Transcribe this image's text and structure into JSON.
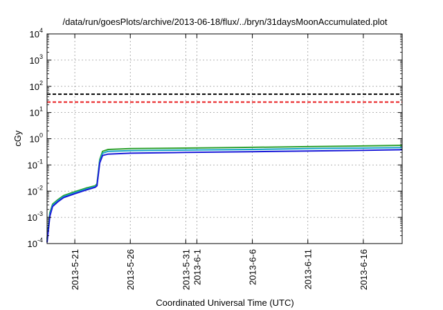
{
  "chart_data": {
    "type": "line",
    "title": "/data/run/goesPlots/archive/2013-06-18/flux/../bryn/31daysMoonAccumulated.plot",
    "xlabel": "Coordinated Universal Time (UTC)",
    "ylabel": "cGy",
    "yscale": "log",
    "ylim": [
      0.0001,
      10000
    ],
    "xlim": [
      "2013-05-18T12:00",
      "2013-06-19T12:00"
    ],
    "grid": true,
    "y_ticks": [
      {
        "value": 0.0001,
        "base": "10",
        "exp": "-4"
      },
      {
        "value": 0.001,
        "base": "10",
        "exp": "-3"
      },
      {
        "value": 0.01,
        "base": "10",
        "exp": "-2"
      },
      {
        "value": 0.1,
        "base": "10",
        "exp": "-1"
      },
      {
        "value": 1,
        "base": "10",
        "exp": "0"
      },
      {
        "value": 10,
        "base": "10",
        "exp": "1"
      },
      {
        "value": 100,
        "base": "10",
        "exp": "2"
      },
      {
        "value": 1000,
        "base": "10",
        "exp": "3"
      },
      {
        "value": 10000,
        "base": "10",
        "exp": "4"
      }
    ],
    "x_ticks": [
      {
        "date": "2013-05-21",
        "label": "2013-5-21"
      },
      {
        "date": "2013-05-26",
        "label": "2013-5-26"
      },
      {
        "date": "2013-05-31",
        "label": "2013-5-31"
      },
      {
        "date": "2013-06-01",
        "label": "2013-6-1"
      },
      {
        "date": "2013-06-06",
        "label": "2013-6-6"
      },
      {
        "date": "2013-06-11",
        "label": "2013-6-11"
      },
      {
        "date": "2013-06-16",
        "label": "2013-6-16"
      }
    ],
    "thresholds": [
      {
        "value": 50,
        "color": "#000000",
        "style": "dashed"
      },
      {
        "value": 25,
        "color": "#e8191b",
        "style": "dashed"
      }
    ],
    "series": [
      {
        "color": "#2ca02c",
        "x": [
          "2013-05-18T12:00",
          "2013-05-18T18:00",
          "2013-05-19T00:00",
          "2013-05-19T12:00",
          "2013-05-20T00:00",
          "2013-05-21T00:00",
          "2013-05-22T00:00",
          "2013-05-22T20:00",
          "2013-05-23T00:00",
          "2013-05-23T06:00",
          "2013-05-23T12:00",
          "2013-05-24T00:00",
          "2013-05-26T00:00",
          "2013-05-31T00:00",
          "2013-06-06T00:00",
          "2013-06-11T00:00",
          "2013-06-16T00:00",
          "2013-06-19T12:00"
        ],
        "y": [
          0.00015,
          0.0015,
          0.0032,
          0.0048,
          0.0068,
          0.0095,
          0.013,
          0.016,
          0.019,
          0.16,
          0.33,
          0.39,
          0.42,
          0.44,
          0.47,
          0.5,
          0.53,
          0.56
        ]
      },
      {
        "color": "#17a5c8",
        "x": [
          "2013-05-18T12:00",
          "2013-05-18T18:00",
          "2013-05-19T00:00",
          "2013-05-19T12:00",
          "2013-05-20T00:00",
          "2013-05-21T00:00",
          "2013-05-22T00:00",
          "2013-05-22T20:00",
          "2013-05-23T00:00",
          "2013-05-23T06:00",
          "2013-05-23T12:00",
          "2013-05-24T00:00",
          "2013-05-26T00:00",
          "2013-05-31T00:00",
          "2013-06-06T00:00",
          "2013-06-11T00:00",
          "2013-06-16T00:00",
          "2013-06-19T12:00"
        ],
        "y": [
          0.00013,
          0.0013,
          0.0029,
          0.0044,
          0.0062,
          0.0088,
          0.012,
          0.015,
          0.017,
          0.14,
          0.28,
          0.33,
          0.35,
          0.37,
          0.39,
          0.42,
          0.44,
          0.46
        ]
      },
      {
        "color": "#1a1ad8",
        "x": [
          "2013-05-18T12:00",
          "2013-05-18T18:00",
          "2013-05-19T00:00",
          "2013-05-19T12:00",
          "2013-05-20T00:00",
          "2013-05-21T00:00",
          "2013-05-22T00:00",
          "2013-05-22T20:00",
          "2013-05-23T00:00",
          "2013-05-23T06:00",
          "2013-05-23T12:00",
          "2013-05-24T00:00",
          "2013-05-26T00:00",
          "2013-05-31T00:00",
          "2013-06-06T00:00",
          "2013-06-11T00:00",
          "2013-06-16T00:00",
          "2013-06-19T12:00"
        ],
        "y": [
          0.00011,
          0.0011,
          0.0026,
          0.004,
          0.0057,
          0.008,
          0.011,
          0.014,
          0.016,
          0.12,
          0.23,
          0.26,
          0.28,
          0.3,
          0.32,
          0.34,
          0.36,
          0.38
        ]
      }
    ]
  }
}
